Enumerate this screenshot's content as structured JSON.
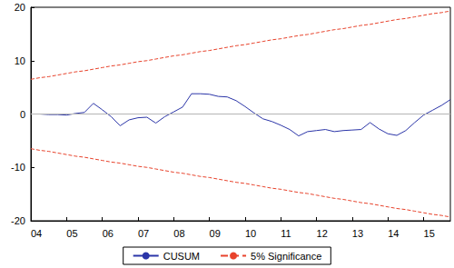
{
  "chart_data": {
    "type": "line",
    "categories": [
      "04",
      null,
      null,
      null,
      "05",
      null,
      null,
      null,
      "06",
      null,
      null,
      null,
      "07",
      null,
      null,
      null,
      "08",
      null,
      null,
      null,
      "09",
      null,
      null,
      null,
      "10",
      null,
      null,
      null,
      "11",
      null,
      null,
      null,
      "12",
      null,
      null,
      null,
      "13",
      null,
      null,
      null,
      "14",
      null,
      null,
      null,
      "15",
      null,
      null,
      null
    ],
    "series": [
      {
        "name": "CUSUM",
        "color": "#2b35a8",
        "line_style": "solid",
        "values": [
          0.0,
          0.0,
          -0.1,
          -0.1,
          -0.2,
          0.1,
          0.3,
          2.0,
          0.8,
          -0.5,
          -2.2,
          -1.1,
          -0.7,
          -0.6,
          -1.7,
          -0.5,
          0.4,
          1.3,
          3.8,
          3.8,
          3.7,
          3.3,
          3.2,
          2.5,
          1.4,
          0.2,
          -0.9,
          -1.4,
          -2.1,
          -2.9,
          -4.1,
          -3.3,
          -3.1,
          -2.9,
          -3.3,
          -3.1,
          -3.0,
          -2.9,
          -1.6,
          -2.8,
          -3.7,
          -4.0,
          -3.1,
          -1.6,
          -0.2,
          0.7,
          1.6,
          2.7
        ]
      },
      {
        "name": "5% Significance",
        "color": "#e8432c",
        "line_style": "dashed",
        "values": [
          6.5,
          6.8,
          7.0,
          7.3,
          7.6,
          7.9,
          8.1,
          8.4,
          8.7,
          9.0,
          9.2,
          9.5,
          9.8,
          10.0,
          10.3,
          10.6,
          10.9,
          11.1,
          11.4,
          11.7,
          11.9,
          12.2,
          12.5,
          12.8,
          13.0,
          13.3,
          13.6,
          13.9,
          14.1,
          14.4,
          14.7,
          14.9,
          15.2,
          15.5,
          15.8,
          16.0,
          16.3,
          16.6,
          16.8,
          17.1,
          17.4,
          17.7,
          17.9,
          18.2,
          18.5,
          18.8,
          19.0,
          19.3
        ]
      },
      {
        "name": "5% Significance",
        "color": "#e8432c",
        "line_style": "dashed",
        "values": [
          -6.5,
          -6.8,
          -7.0,
          -7.3,
          -7.6,
          -7.9,
          -8.1,
          -8.4,
          -8.7,
          -9.0,
          -9.2,
          -9.5,
          -9.8,
          -10.0,
          -10.3,
          -10.6,
          -10.9,
          -11.1,
          -11.4,
          -11.7,
          -11.9,
          -12.2,
          -12.5,
          -12.8,
          -13.0,
          -13.3,
          -13.6,
          -13.9,
          -14.1,
          -14.4,
          -14.7,
          -14.9,
          -15.2,
          -15.5,
          -15.8,
          -16.0,
          -16.3,
          -16.6,
          -16.8,
          -17.1,
          -17.4,
          -17.7,
          -17.9,
          -18.2,
          -18.5,
          -18.8,
          -19.0,
          -19.3
        ]
      }
    ],
    "ylim": [
      -20,
      20
    ],
    "yticks": [
      -20,
      -10,
      0,
      10,
      20
    ],
    "grid": false,
    "legend": "bottom"
  }
}
